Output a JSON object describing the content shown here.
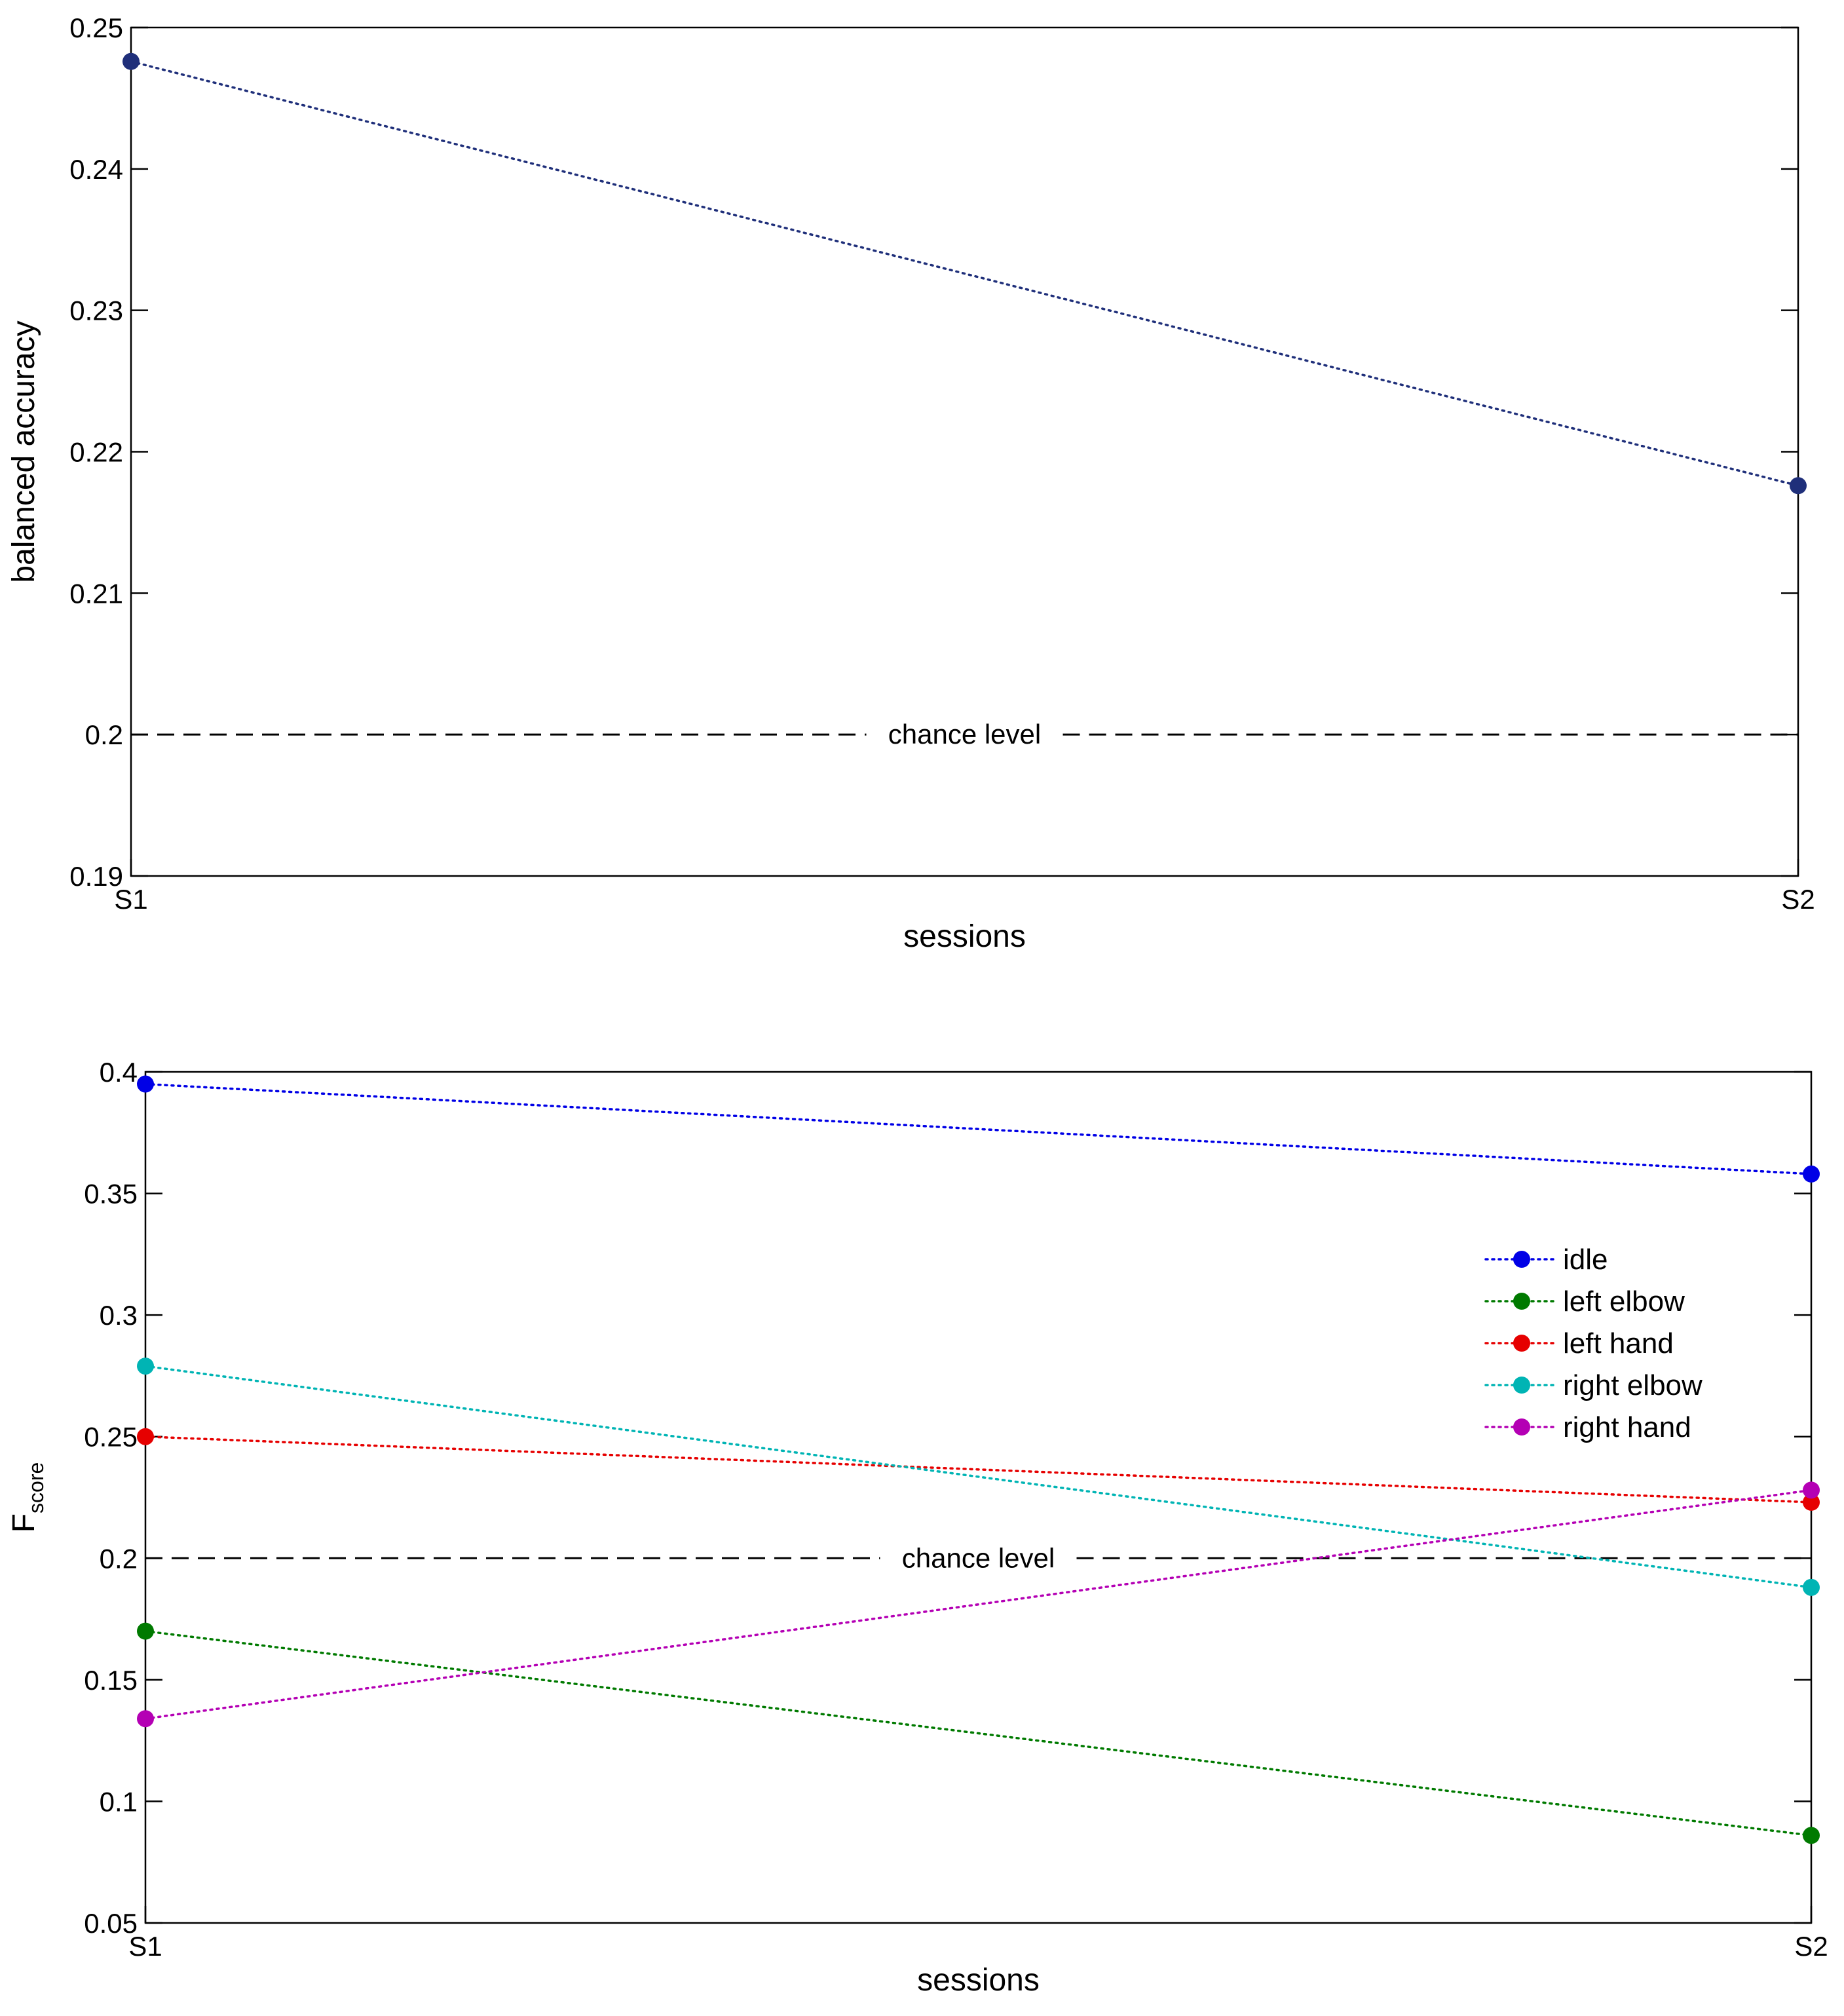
{
  "chart_data": [
    {
      "type": "line",
      "title": "",
      "xlabel": "sessions",
      "ylabel": "balanced accuracy",
      "categories": [
        "S1",
        "S2"
      ],
      "ylim": [
        0.19,
        0.25
      ],
      "yticks": [
        "0.19",
        "0.2",
        "0.21",
        "0.22",
        "0.23",
        "0.24",
        "0.25"
      ],
      "grid": false,
      "legend": null,
      "series": [
        {
          "values": [
            0.2476,
            0.2176
          ],
          "color": "#1f2f7a",
          "line_style": "dotted",
          "marker": "circle"
        }
      ],
      "reference_line": {
        "y": 0.2,
        "label": "chance level",
        "style": "dashed",
        "color": "#000000"
      }
    },
    {
      "type": "line",
      "title": "",
      "xlabel": "sessions",
      "ylabel": "F",
      "ylabel_sub": "score",
      "categories": [
        "S1",
        "S2"
      ],
      "ylim": [
        0.05,
        0.4
      ],
      "yticks": [
        "0.05",
        "0.1",
        "0.15",
        "0.2",
        "0.25",
        "0.3",
        "0.35",
        "0.4"
      ],
      "grid": false,
      "legend": "right",
      "series": [
        {
          "name": "idle",
          "values": [
            0.395,
            0.358
          ],
          "color": "#0000e6"
        },
        {
          "name": "left elbow",
          "values": [
            0.17,
            0.086
          ],
          "color": "#007a00"
        },
        {
          "name": "left hand",
          "values": [
            0.25,
            0.223
          ],
          "color": "#e60000"
        },
        {
          "name": "right elbow",
          "values": [
            0.279,
            0.188
          ],
          "color": "#00b4b4"
        },
        {
          "name": "right hand",
          "values": [
            0.134,
            0.228
          ],
          "color": "#b400b4"
        }
      ],
      "reference_line": {
        "y": 0.2,
        "label": "chance level",
        "style": "dashed",
        "color": "#000000"
      }
    }
  ]
}
